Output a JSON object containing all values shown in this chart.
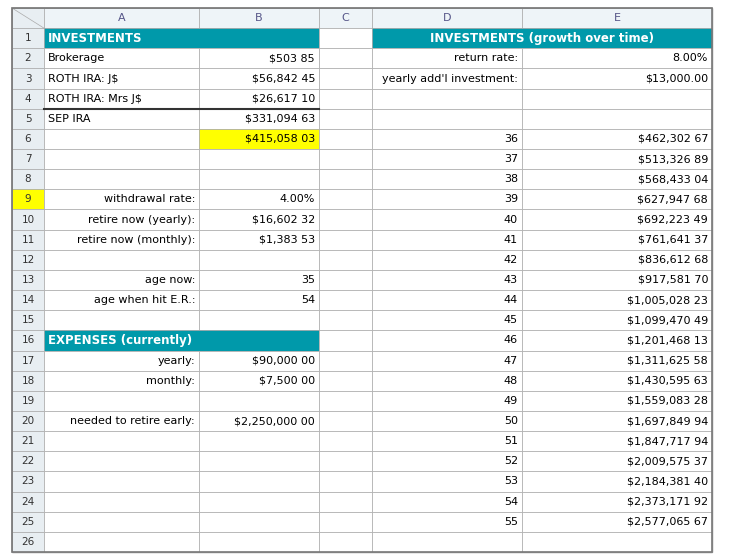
{
  "teal": "#0099AA",
  "yellow": "#FFFF00",
  "yellow_row9": "#FFFF00",
  "light_gray_header": "#E8E8E8",
  "light_blue_header": "#D0E8F0",
  "border_dark": "#555555",
  "border_light": "#AAAAAA",
  "cell_data": {
    "1_A": "INVESTMENTS",
    "2_A": "Brokerage",
    "2_B": "$503 85",
    "3_A": "ROTH IRA: J$",
    "3_B": "$56,842 45",
    "4_A": "ROTH IRA: Mrs J$",
    "4_B": "$26,617 10",
    "5_A": "SEP IRA",
    "5_B": "$331,094 63",
    "6_B": "$415,058 03",
    "9_A": "withdrawal rate:",
    "9_B": "4.00%",
    "10_A": "retire now (yearly):",
    "10_B": "$16,602 32",
    "11_A": "retire now (monthly):",
    "11_B": "$1,383 53",
    "13_A": "age now:",
    "13_B": "35",
    "14_A": "age when hit E.R.:",
    "14_B": "54",
    "16_A": "EXPENSES (currently)",
    "17_A": "yearly:",
    "17_B": "$90,000 00",
    "18_A": "monthly:",
    "18_B": "$7,500 00",
    "20_A": "needed to retire early:",
    "20_B": "$2,250,000 00",
    "1_D": "INVESTMENTS (growth over time)",
    "2_D": "return rate:",
    "2_E": "8.00%",
    "3_D": "yearly add'l investment:",
    "3_E": "$13,000.00",
    "6_D": "36",
    "6_E": "$462,302 67",
    "7_D": "37",
    "7_E": "$513,326 89",
    "8_D": "38",
    "8_E": "$568,433 04",
    "9_D": "39",
    "9_E": "$627,947 68",
    "10_D": "40",
    "10_E": "$692,223 49",
    "11_D": "41",
    "11_E": "$761,641 37",
    "12_D": "42",
    "12_E": "$836,612 68",
    "13_D": "43",
    "13_E": "$917,581 70",
    "14_D": "44",
    "14_E": "$1,005,028 23",
    "15_D": "45",
    "15_E": "$1,099,470 49",
    "16_D": "46",
    "16_E": "$1,201,468 13",
    "17_D": "47",
    "17_E": "$1,311,625 58",
    "18_D": "48",
    "18_E": "$1,430,595 63",
    "19_D": "49",
    "19_E": "$1,559,083 28",
    "20_D": "50",
    "20_E": "$1,697,849 94",
    "21_D": "51",
    "21_E": "$1,847,717 94",
    "22_D": "52",
    "22_E": "$2,009,575 37",
    "23_D": "53",
    "23_E": "$2,184,381 40",
    "24_D": "54",
    "24_E": "$2,373,171 92",
    "25_D": "55",
    "25_E": "$2,577,065 67"
  },
  "n_rows": 26,
  "figsize": [
    7.4,
    5.6
  ],
  "dpi": 100
}
